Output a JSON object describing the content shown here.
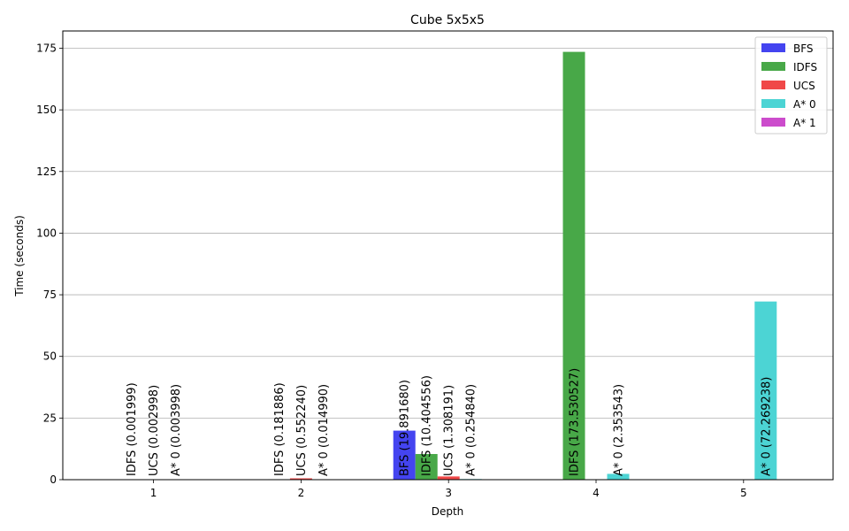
{
  "chart_data": {
    "type": "bar",
    "title": "Cube 5x5x5",
    "xlabel": "Depth",
    "ylabel": "Time (seconds)",
    "categories": [
      "1",
      "2",
      "3",
      "4",
      "5"
    ],
    "ylim": [
      0,
      182
    ],
    "yticks": [
      0,
      25,
      50,
      75,
      100,
      125,
      150,
      175
    ],
    "grid": true,
    "legend_position": "top-right",
    "series": [
      {
        "name": "BFS",
        "color": "#4444f0",
        "values": [
          null,
          null,
          19.89168,
          null,
          null
        ],
        "labels": [
          "",
          "",
          "BFS (19.891680)",
          "",
          ""
        ]
      },
      {
        "name": "IDFS",
        "color": "#48a848",
        "values": [
          0.001999,
          0.181886,
          10.404556,
          173.530527,
          null
        ],
        "labels": [
          "IDFS (0.001999)",
          "IDFS (0.181886)",
          "IDFS (10.404556)",
          "IDFS (173.530527)",
          ""
        ]
      },
      {
        "name": "UCS",
        "color": "#f04848",
        "values": [
          0.002998,
          0.55224,
          1.308191,
          null,
          null
        ],
        "labels": [
          "UCS (0.002998)",
          "UCS (0.552240)",
          "UCS (1.308191)",
          "",
          ""
        ]
      },
      {
        "name": "A* 0",
        "color": "#4cd4d4",
        "values": [
          0.003998,
          0.01499,
          0.25484,
          2.353543,
          72.269238
        ],
        "labels": [
          "A* 0 (0.003998)",
          "A* 0 (0.014990)",
          "A* 0 (0.254840)",
          "A* 0 (2.353543)",
          "A* 0 (72.269238)"
        ]
      },
      {
        "name": "A* 1",
        "color": "#cc4ccc",
        "values": [
          null,
          null,
          null,
          null,
          null
        ],
        "labels": [
          "",
          "",
          "",
          "",
          ""
        ]
      }
    ]
  }
}
